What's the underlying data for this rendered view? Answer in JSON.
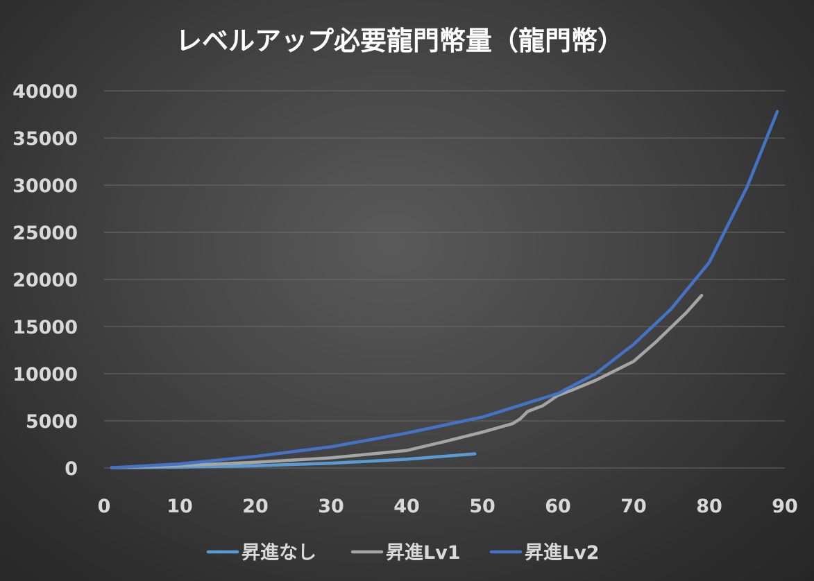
{
  "chart_data": {
    "type": "line",
    "title": "レベルアップ必要龍門幣量（龍門幣）",
    "xlabel": "",
    "ylabel": "",
    "xlim": [
      0,
      90
    ],
    "ylim": [
      0,
      40000
    ],
    "x_ticks": [
      "0",
      "10",
      "20",
      "30",
      "40",
      "50",
      "60",
      "70",
      "80",
      "90"
    ],
    "y_ticks": [
      "0",
      "5000",
      "10000",
      "15000",
      "20000",
      "25000",
      "30000",
      "35000",
      "40000"
    ],
    "grid": true,
    "legend_position": "bottom",
    "series": [
      {
        "name": "昇進なし",
        "color": "#5b9bd5",
        "points": [
          [
            1,
            30
          ],
          [
            10,
            90
          ],
          [
            20,
            240
          ],
          [
            30,
            510
          ],
          [
            40,
            930
          ],
          [
            49,
            1500
          ]
        ]
      },
      {
        "name": "昇進Lv1",
        "color": "#a5a5a5",
        "points": [
          [
            1,
            30
          ],
          [
            10,
            250
          ],
          [
            20,
            600
          ],
          [
            30,
            1070
          ],
          [
            40,
            1850
          ],
          [
            45,
            2800
          ],
          [
            50,
            3800
          ],
          [
            54,
            4700
          ],
          [
            55,
            5200
          ],
          [
            56,
            6000
          ],
          [
            58,
            6600
          ],
          [
            60,
            7700
          ],
          [
            62,
            8300
          ],
          [
            65,
            9300
          ],
          [
            68,
            10500
          ],
          [
            70,
            11300
          ],
          [
            73,
            13400
          ],
          [
            77,
            16500
          ],
          [
            79,
            18300
          ]
        ]
      },
      {
        "name": "昇進Lv2",
        "color": "#4472c4",
        "points": [
          [
            1,
            30
          ],
          [
            10,
            430
          ],
          [
            20,
            1230
          ],
          [
            30,
            2240
          ],
          [
            40,
            3700
          ],
          [
            50,
            5400
          ],
          [
            60,
            7900
          ],
          [
            65,
            10000
          ],
          [
            69,
            12500
          ],
          [
            70,
            13100
          ],
          [
            75,
            16900
          ],
          [
            80,
            21800
          ],
          [
            85,
            29800
          ],
          [
            89,
            37800
          ]
        ]
      }
    ]
  }
}
